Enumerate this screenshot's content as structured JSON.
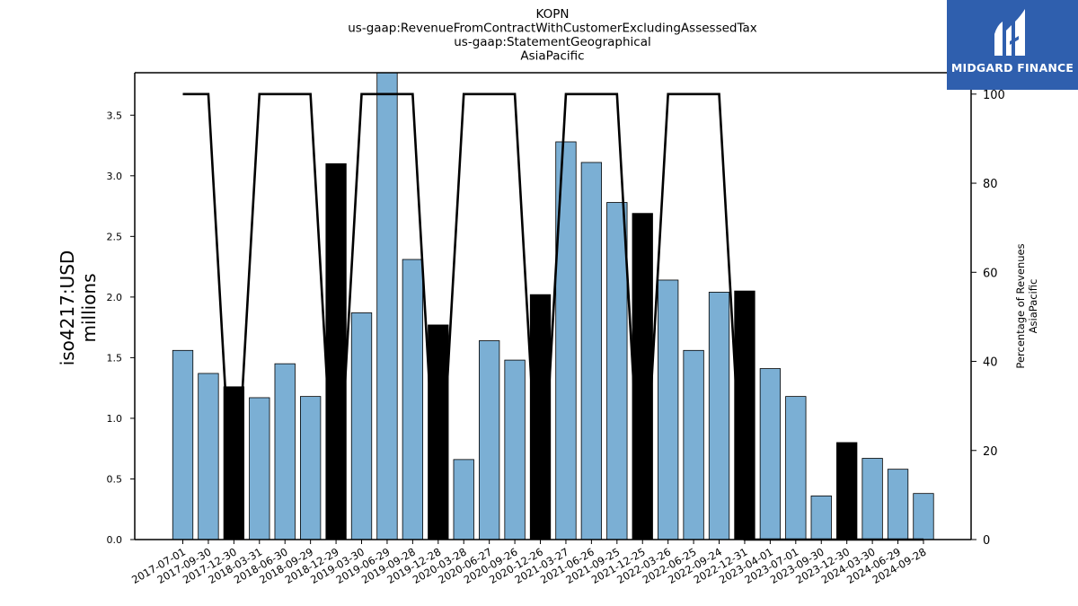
{
  "chart_data": {
    "type": "bar",
    "title_lines": [
      "KOPN",
      "us-gaap:RevenueFromContractWithCustomerExcludingAssessedTax",
      "us-gaap:StatementGeographical",
      "AsiaPacific"
    ],
    "ylabel": [
      "iso4217:USD",
      "millions"
    ],
    "y2label": [
      "Percentage of Revenues",
      "AsiaPacific"
    ],
    "ylim": [
      0,
      3.85
    ],
    "y2lim": [
      0,
      104.8
    ],
    "yticks": [
      "0.0",
      "0.5",
      "1.0",
      "1.5",
      "2.0",
      "2.5",
      "3.0",
      "3.5"
    ],
    "y2ticks": [
      "0",
      "20",
      "40",
      "60",
      "80",
      "100"
    ],
    "categories": [
      "2017-07-01",
      "2017-09-30",
      "2017-12-30",
      "2018-03-31",
      "2018-06-30",
      "2018-09-29",
      "2018-12-29",
      "2019-03-30",
      "2019-06-29",
      "2019-09-28",
      "2019-12-28",
      "2020-03-28",
      "2020-06-27",
      "2020-09-26",
      "2020-12-26",
      "2021-03-27",
      "2021-06-26",
      "2021-09-25",
      "2021-12-25",
      "2022-03-26",
      "2022-06-25",
      "2022-09-24",
      "2022-12-31",
      "2023-04-01",
      "2023-07-01",
      "2023-09-30",
      "2023-12-30",
      "2024-03-30",
      "2024-06-29",
      "2024-09-28"
    ],
    "values": [
      1.56,
      1.37,
      1.26,
      1.17,
      1.45,
      1.18,
      3.1,
      1.87,
      3.88,
      2.31,
      1.77,
      0.66,
      1.64,
      1.48,
      2.02,
      3.28,
      3.11,
      2.78,
      2.69,
      2.14,
      1.56,
      2.04,
      2.05,
      1.41,
      1.18,
      0.36,
      0.8,
      0.67,
      0.58,
      0.38
    ],
    "annual_flags": [
      false,
      false,
      true,
      false,
      false,
      false,
      true,
      false,
      false,
      false,
      true,
      false,
      false,
      false,
      true,
      false,
      false,
      false,
      true,
      false,
      false,
      false,
      true,
      false,
      false,
      false,
      true,
      false,
      false,
      false
    ],
    "percentage_series": [
      100,
      100,
      0,
      100,
      100,
      100,
      0,
      100,
      100,
      100,
      0,
      100,
      100,
      100,
      0,
      100,
      100,
      100,
      0,
      100,
      100,
      100,
      0,
      0,
      0,
      0,
      0,
      0,
      0,
      0
    ],
    "colors": {
      "quarterly_bar": "#7bafd4",
      "annual_bar": "#000000",
      "line": "#000000"
    }
  },
  "brand": {
    "name": "MIDGARD FINANCE",
    "bg": "#2f5fae"
  }
}
